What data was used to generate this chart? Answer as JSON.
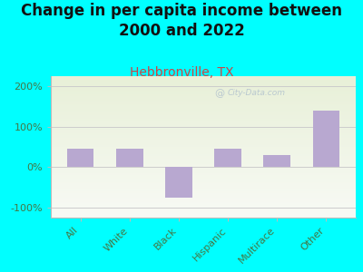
{
  "title": "Change in per capita income between\n2000 and 2022",
  "subtitle": "Hebbronville, TX",
  "categories": [
    "All",
    "White",
    "Black",
    "Hispanic",
    "Multirace",
    "Other"
  ],
  "values": [
    45,
    45,
    -75,
    45,
    30,
    140
  ],
  "bar_color": "#b8a8d0",
  "background_color": "#00ffff",
  "plot_bg_top": "#e8f0d8",
  "plot_bg_bottom": "#f8faf5",
  "title_fontsize": 12,
  "subtitle_fontsize": 10,
  "subtitle_color": "#cc4444",
  "tick_label_color": "#447744",
  "ylabel_ticks": [
    "-100%",
    "0%",
    "100%",
    "200%"
  ],
  "ylim": [
    -125,
    225
  ],
  "yticks": [
    -100,
    0,
    100,
    200
  ],
  "watermark": "City-Data.com"
}
